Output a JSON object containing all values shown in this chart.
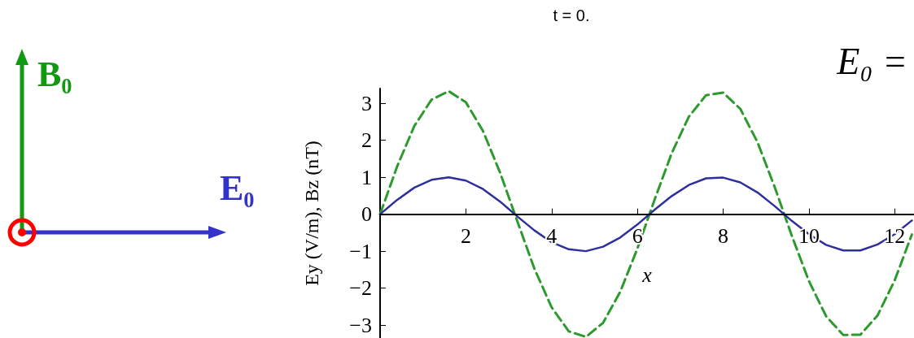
{
  "chart_data": {
    "type": "line",
    "title": "t = 0.",
    "xlabel": "x",
    "ylabel": "Ey (V/m), Bz (nT)",
    "annotations": [
      "E₀ =",
      "B₀",
      "E₀"
    ],
    "x": [
      0,
      0.4,
      0.8,
      1.2,
      1.6,
      2.0,
      2.4,
      2.8,
      3.2,
      3.6,
      4.0,
      4.4,
      4.8,
      5.2,
      5.6,
      6.0,
      6.4,
      6.8,
      7.2,
      7.6,
      8.0,
      8.4,
      8.8,
      9.2,
      9.6,
      10.0,
      10.4,
      10.8,
      11.2,
      11.6,
      12.0,
      12.4
    ],
    "series": [
      {
        "color": "#2e2e9e",
        "line_style": "solid",
        "values": [
          0,
          0.39,
          0.72,
          0.93,
          1.0,
          0.91,
          0.68,
          0.34,
          -0.06,
          -0.44,
          -0.76,
          -0.95,
          -1.0,
          -0.88,
          -0.63,
          -0.28,
          0.12,
          0.49,
          0.79,
          0.97,
          0.99,
          0.86,
          0.59,
          0.22,
          -0.18,
          -0.54,
          -0.83,
          -0.98,
          -0.98,
          -0.82,
          -0.54,
          -0.17
        ]
      },
      {
        "color": "#2e9a2e",
        "line_style": "dashed",
        "values": [
          0,
          1.3,
          2.39,
          3.1,
          3.33,
          3.03,
          2.25,
          1.12,
          -0.19,
          -1.48,
          -2.52,
          -3.17,
          -3.32,
          -2.94,
          -2.1,
          -0.93,
          0.39,
          1.65,
          2.64,
          3.22,
          3.29,
          2.85,
          1.95,
          0.74,
          -0.58,
          -1.81,
          -2.76,
          -3.27,
          -3.26,
          -2.74,
          -1.79,
          -0.55
        ]
      }
    ],
    "xlim": [
      0,
      12.45
    ],
    "xticks": [
      2,
      4,
      6,
      8,
      10,
      12
    ],
    "ylim": [
      -3.35,
      3.4
    ],
    "yticks": [
      {
        "value": -3,
        "label": "−3"
      },
      {
        "value": -2,
        "label": "−2"
      },
      {
        "value": -1,
        "label": "−1"
      },
      0,
      1,
      2,
      3
    ],
    "grid": false,
    "marker": "none"
  }
}
